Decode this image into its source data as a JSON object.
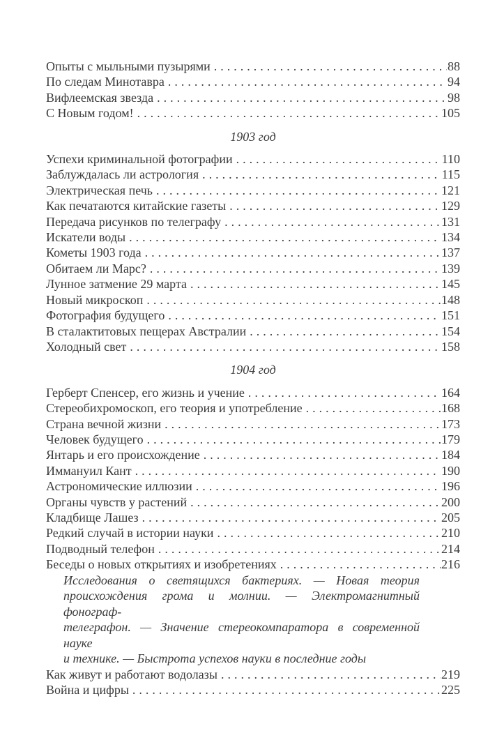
{
  "page": {
    "background_color": "#ffffff",
    "ink_color": "#3a3a3a",
    "kind": "book-table-of-contents"
  },
  "toc": {
    "sections": [
      {
        "heading": null,
        "entries": [
          {
            "title": "Опыты с мыльными пузырями",
            "page": "88"
          },
          {
            "title": "По следам Минотавра",
            "page": "94"
          },
          {
            "title": "Вифлеемская звезда",
            "page": "98"
          },
          {
            "title": "С Новым годом!",
            "page": "105"
          }
        ]
      },
      {
        "heading": "1903 год",
        "entries": [
          {
            "title": "Успехи криминальной фотографии",
            "page": "110"
          },
          {
            "title": "Заблуждалась ли астрология",
            "page": "115"
          },
          {
            "title": "Электрическая печь",
            "page": "121"
          },
          {
            "title": "Как печатаются китайские газеты",
            "page": "129"
          },
          {
            "title": "Передача рисунков по телеграфу",
            "page": "131"
          },
          {
            "title": "Искатели воды",
            "page": "134"
          },
          {
            "title": "Кометы 1903 года",
            "page": "137"
          },
          {
            "title": "Обитаем ли Марс?",
            "page": "139"
          },
          {
            "title": "Лунное затмение 29 марта",
            "page": "145"
          },
          {
            "title": "Новый микроскоп",
            "page": "148"
          },
          {
            "title": "Фотография будущего",
            "page": "151"
          },
          {
            "title": "В сталактитовых пещерах Австралии",
            "page": "154"
          },
          {
            "title": "Холодный свет",
            "page": "158"
          }
        ]
      },
      {
        "heading": "1904 год",
        "entries": [
          {
            "title": "Герберт Спенсер, его жизнь и учение",
            "page": "164"
          },
          {
            "title": "Стереобихромоскоп, его теория и употребление",
            "page": "168"
          },
          {
            "title": "Страна вечной жизни",
            "page": "173"
          },
          {
            "title": "Человек будущего",
            "page": "179"
          },
          {
            "title": "Янтарь и его происхождение",
            "page": "184"
          },
          {
            "title": "Иммануил Кант",
            "page": "190"
          },
          {
            "title": "Астрономические иллюзии",
            "page": "196"
          },
          {
            "title": "Органы чувств у растений",
            "page": "200"
          },
          {
            "title": "Кладбище Лашез",
            "page": "205"
          },
          {
            "title": "Редкий случай в истории науки",
            "page": "210"
          },
          {
            "title": "Подводный телефон",
            "page": "214"
          },
          {
            "title": "Беседы о новых открытиях и изобретениях",
            "page": "216",
            "note_lines": [
              "Исследования о светящихся бактериях. — Новая теория",
              "происхождения грома и молнии. — Электромагнитный фонограф-",
              "телеграфон. — Значение стереокомпаратора в современной науке",
              "и технике. — Быстрота успехов науки в последние годы"
            ]
          },
          {
            "title": "Как живут и работают водолазы",
            "page": "219"
          },
          {
            "title": "Война и цифры",
            "page": "225"
          }
        ]
      }
    ]
  }
}
